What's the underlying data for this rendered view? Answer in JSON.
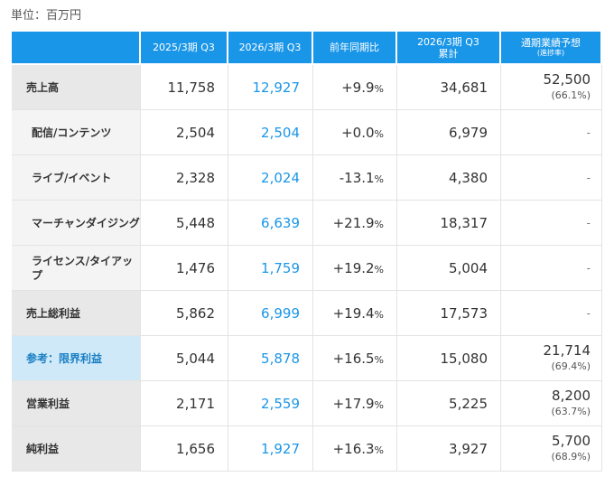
{
  "unit_label": "単位：百万円",
  "headers": {
    "c1": "2025/3期 Q3",
    "c2": "2026/3期 Q3",
    "c3": "前年同期比",
    "c4_line1": "2026/3期 Q3",
    "c4_line2": "累計",
    "c5_line1": "通期業績予想",
    "c5_line2": "(進捗率)"
  },
  "rows": [
    {
      "label": "売上高",
      "prev": "11,758",
      "curr": "12,927",
      "yoy_num": "+9.9",
      "yoy_pct": "%",
      "cum": "34,681",
      "forecast": "52,500",
      "progress": "(66.1%)"
    },
    {
      "label": "配信/コンテンツ",
      "prev": "2,504",
      "curr": "2,504",
      "yoy_num": "+0.0",
      "yoy_pct": "%",
      "cum": "6,979",
      "forecast": "-"
    },
    {
      "label": "ライブ/イベント",
      "prev": "2,328",
      "curr": "2,024",
      "yoy_num": "-13.1",
      "yoy_pct": "%",
      "cum": "4,380",
      "forecast": "-"
    },
    {
      "label": "マーチャンダイジング",
      "prev": "5,448",
      "curr": "6,639",
      "yoy_num": "+21.9",
      "yoy_pct": "%",
      "cum": "18,317",
      "forecast": "-"
    },
    {
      "label": "ライセンス/タイアップ",
      "prev": "1,476",
      "curr": "1,759",
      "yoy_num": "+19.2",
      "yoy_pct": "%",
      "cum": "5,004",
      "forecast": "-"
    },
    {
      "label": "売上総利益",
      "prev": "5,862",
      "curr": "6,999",
      "yoy_num": "+19.4",
      "yoy_pct": "%",
      "cum": "17,573",
      "forecast": "-"
    },
    {
      "label": "参考：限界利益",
      "prev": "5,044",
      "curr": "5,878",
      "yoy_num": "+16.5",
      "yoy_pct": "%",
      "cum": "15,080",
      "forecast": "21,714",
      "progress": "(69.4%)"
    },
    {
      "label": "営業利益",
      "prev": "2,171",
      "curr": "2,559",
      "yoy_num": "+17.9",
      "yoy_pct": "%",
      "cum": "5,225",
      "forecast": "8,200",
      "progress": "(63.7%)"
    },
    {
      "label": "純利益",
      "prev": "1,656",
      "curr": "1,927",
      "yoy_num": "+16.3",
      "yoy_pct": "%",
      "cum": "3,927",
      "forecast": "5,700",
      "progress": "(68.9%)"
    }
  ]
}
